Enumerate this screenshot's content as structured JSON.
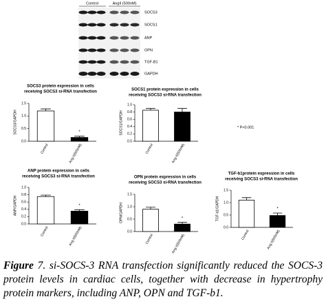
{
  "blot": {
    "columns": [
      "Control",
      "AngII (500nM)"
    ],
    "rows": [
      "SOCS3",
      "SOCS1",
      "ANP",
      "OPN",
      "TGF-B1",
      "GAPDH"
    ]
  },
  "chart_data": [
    {
      "type": "bar",
      "title": [
        "SOCS3 protein expression in cells",
        "receiving SOCS3 si-RNA transfection"
      ],
      "y_label": "SOCS3/GAPDH",
      "categories": [
        "Control",
        "Ang II(500nM)"
      ],
      "values": [
        1.2,
        0.15
      ],
      "errors": [
        0.08,
        0.05
      ],
      "bar_colors": [
        "#ffffff",
        "#000000"
      ],
      "star": "*",
      "ylim": [
        0,
        1.5
      ],
      "yticks": [
        {
          "value": 0,
          "label": "0.0"
        },
        0.5,
        {
          "value": 1,
          "label": "1.0"
        },
        1.5
      ]
    },
    {
      "type": "bar",
      "title": [
        "SOCS1 protein expression in cells",
        "receiving SOCS3 si-RNA transfection"
      ],
      "y_label": "SOCS1/GAPDH",
      "categories": [
        "Control",
        "Ang II(500nM)"
      ],
      "values": [
        0.85,
        0.8
      ],
      "errors": [
        0.05,
        0.1
      ],
      "bar_colors": [
        "#ffffff",
        "#000000"
      ],
      "ylim": [
        0,
        1
      ],
      "yticks": [
        {
          "value": 0,
          "label": "0.0"
        },
        0.2,
        0.4,
        0.6,
        0.8,
        {
          "value": 1,
          "label": "1.0"
        }
      ]
    },
    {
      "type": "bar",
      "title": [
        "ANP protein expression in cells",
        "receiving SOCS3 si-RNA transfection"
      ],
      "y_label": "ANP/GAPDH",
      "categories": [
        "Control",
        "Ang II(500nM)"
      ],
      "values": [
        0.75,
        0.35
      ],
      "errors": [
        0.04,
        0.04
      ],
      "bar_colors": [
        "#ffffff",
        "#000000"
      ],
      "star": "*",
      "ylim": [
        0,
        1
      ],
      "yticks": [
        {
          "value": 0,
          "label": "0.0"
        },
        0.2,
        0.4,
        0.6,
        0.8,
        {
          "value": 1,
          "label": "1.0"
        }
      ]
    },
    {
      "type": "bar",
      "title": [
        "OPN protein expression in cells",
        "receiving SOCS3 si-RNA transfection"
      ],
      "y_label": "OPN/GAPDH",
      "categories": [
        "Control",
        "Ang II(500nM)"
      ],
      "values": [
        0.9,
        0.3
      ],
      "errors": [
        0.08,
        0.07
      ],
      "bar_colors": [
        "#ffffff",
        "#000000"
      ],
      "star": "*",
      "ylim": [
        0,
        1.5
      ],
      "yticks": [
        {
          "value": 0,
          "label": "0.0"
        },
        0.5,
        {
          "value": 1,
          "label": "1.0"
        },
        1.5
      ]
    },
    {
      "type": "bar",
      "title": [
        "TGF-b1protein expression in cells",
        "receiving SOCS3 si-RNA transfection"
      ],
      "y_label": "TGF-b1/GAPDH",
      "categories": [
        "Control",
        "Ang II(500nM)"
      ],
      "values": [
        1.1,
        0.48
      ],
      "errors": [
        0.1,
        0.1
      ],
      "bar_colors": [
        "#ffffff",
        "#000000"
      ],
      "star": "*",
      "ylim": [
        0,
        1.5
      ],
      "yticks": [
        {
          "value": 0,
          "label": "0.0"
        },
        0.5,
        {
          "value": 1,
          "label": "1.0"
        },
        1.5
      ]
    }
  ],
  "note": "* P<0.001",
  "caption": {
    "label": "Figure",
    "text": "7. si-SOCS-3 RNA transfection significantly reduced the SOCS-3 protein levels in cardiac cells, together with decrease in hypertrophy protein markers, including ANP, OPN and TGF-b1."
  }
}
